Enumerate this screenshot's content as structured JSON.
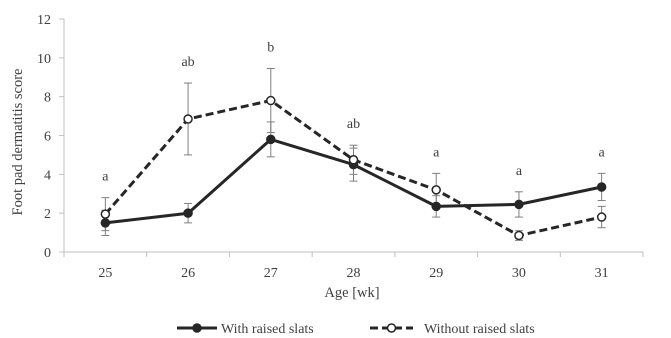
{
  "chart_data": {
    "type": "line",
    "title": "",
    "xlabel": "Age [wk]",
    "ylabel": "Foot pad dermatitis score",
    "categories": [
      "25",
      "26",
      "27",
      "28",
      "29",
      "30",
      "31"
    ],
    "ylim": [
      0,
      12
    ],
    "y_ticks": [
      "0",
      "2",
      "4",
      "6",
      "8",
      "10",
      "12"
    ],
    "grid": false,
    "legend_position": "bottom",
    "series": [
      {
        "name": "With raised slats",
        "values": [
          1.5,
          2.0,
          5.8,
          4.5,
          2.35,
          2.45,
          3.35
        ],
        "error": [
          0.65,
          0.5,
          0.9,
          0.85,
          0.55,
          0.65,
          0.7
        ],
        "line_style": "solid",
        "marker": "filled-circle",
        "color": "#262626"
      },
      {
        "name": "Without raised slats",
        "values": [
          1.95,
          6.85,
          7.8,
          4.75,
          3.2,
          0.85,
          1.8
        ],
        "error": [
          0.85,
          1.85,
          1.65,
          0.75,
          0.85,
          0.25,
          0.55
        ],
        "line_style": "dashed",
        "marker": "open-circle",
        "color": "#262626"
      }
    ],
    "annotations": [
      "a",
      "ab",
      "b",
      "ab",
      "a",
      "a",
      "a"
    ]
  }
}
